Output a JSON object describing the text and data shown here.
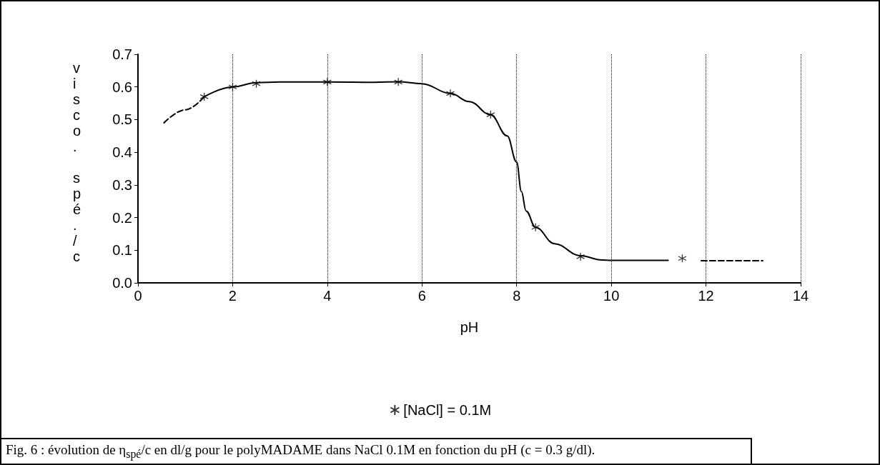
{
  "chart_data": {
    "type": "scatter",
    "xlabel": "pH",
    "ylabel": "visco. spé./c",
    "annotations": [
      "Fig. 6 : évolution de η$_{spé}$/c  en dl/g pour le polyMADAME dans NaCl 0.1M en fonction du pH (c = 0.3 g/dl)."
    ],
    "series": [
      {
        "name": "[NaCl] = 0.1M",
        "color": "#000000",
        "marker": "cross",
        "x": [
          1.4,
          2,
          2.5,
          4,
          5.5,
          6.6,
          7.45,
          8.4,
          9.35,
          11.5
        ],
        "values": [
          0.57,
          0.6,
          0.61,
          0.615,
          0.615,
          0.58,
          0.515,
          0.17,
          0.08,
          0.075
        ]
      },
      {
        "color": "#000000",
        "type": "line",
        "line_style": "solid",
        "x": [
          1.4,
          2,
          2.5,
          3,
          4,
          5,
          5.5,
          6,
          6.6,
          7,
          7.45,
          7.8,
          8,
          8.1,
          8.2,
          8.4,
          8.8,
          9.35,
          9.8,
          10,
          11.2
        ],
        "values": [
          0.57,
          0.6,
          0.613,
          0.615,
          0.615,
          0.614,
          0.616,
          0.61,
          0.58,
          0.555,
          0.515,
          0.45,
          0.37,
          0.28,
          0.22,
          0.17,
          0.12,
          0.083,
          0.07,
          0.069,
          0.069
        ]
      },
      {
        "color": "#000000",
        "type": "line",
        "line_style": "dashed",
        "x": [
          0.55,
          1.0,
          1.4
        ],
        "values": [
          0.49,
          0.53,
          0.57
        ]
      },
      {
        "color": "#000000",
        "type": "line",
        "line_style": "dashed",
        "x": [
          11.9,
          13.2
        ],
        "values": [
          0.068,
          0.068
        ]
      }
    ],
    "xlim": [
      0,
      14
    ],
    "xticks": [
      0,
      2,
      4,
      6,
      8,
      10,
      12,
      14
    ],
    "ylim": [
      0,
      0.7
    ],
    "yticks": [
      {
        "value": 0,
        "label": "0.0"
      },
      {
        "value": 0.1,
        "label": "0.1"
      },
      {
        "value": 0.2,
        "label": "0.2"
      },
      {
        "value": 0.3,
        "label": "0.3"
      },
      {
        "value": 0.4,
        "label": "0.4"
      },
      {
        "value": 0.5,
        "label": "0.5"
      },
      {
        "value": 0.6,
        "label": "0.6"
      },
      {
        "value": 0.7,
        "label": "0.7"
      }
    ],
    "grid": "x",
    "legend": "bottom"
  }
}
